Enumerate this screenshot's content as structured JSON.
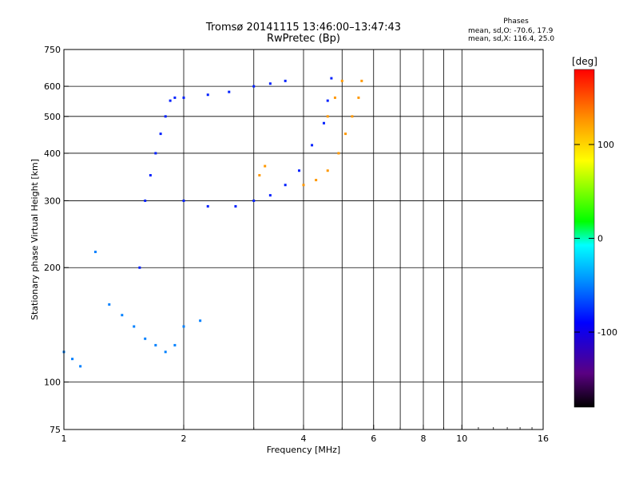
{
  "chart_data": {
    "type": "scatter",
    "title": "Tromsø 20141115 13:46:00–13:47:43",
    "subtitle": "RwPretec (Bp)",
    "legend": {
      "title": "Phases",
      "line1": "mean, sd,O: -70.6, 17.9",
      "line2": "mean, sd,X: 116.4, 25.0"
    },
    "xlabel": "Frequency [MHz]",
    "ylabel": "Stationary phase Virtual Height [km]",
    "xscale": "log",
    "yscale": "log",
    "xlim": [
      1,
      16
    ],
    "ylim": [
      75,
      750
    ],
    "xticks": [
      1,
      2,
      4,
      6,
      8,
      10,
      16
    ],
    "xtick_labels": [
      "1",
      "2",
      "4",
      "6",
      "8",
      "10",
      "16"
    ],
    "x_minor_gridlines": [
      3,
      5,
      7,
      9
    ],
    "yticks": [
      75,
      100,
      200,
      300,
      400,
      500,
      600,
      750
    ],
    "ytick_labels": [
      "75",
      "100",
      "200",
      "300",
      "400",
      "500",
      "600",
      "750"
    ],
    "grid": true,
    "colorbar": {
      "label": "[deg]",
      "range": [
        -180,
        180
      ],
      "ticks": [
        100,
        0,
        -100
      ],
      "tick_labels": [
        "100",
        "0",
        "-100"
      ],
      "colors": [
        "#000000",
        "#5a0082",
        "#0000ff",
        "#0096ff",
        "#00ffff",
        "#00ff00",
        "#ffff00",
        "#ff9600",
        "#ff0000"
      ]
    },
    "series": [
      {
        "trace": "O-mode F-layer trace (blue, ~-80 deg)",
        "color_value": -80,
        "points": [
          [
            1.55,
            200
          ],
          [
            1.6,
            300
          ],
          [
            1.65,
            350
          ],
          [
            1.7,
            400
          ],
          [
            1.75,
            450
          ],
          [
            1.8,
            500
          ],
          [
            1.85,
            550
          ],
          [
            1.9,
            560
          ],
          [
            2.0,
            560
          ],
          [
            2.3,
            570
          ],
          [
            2.6,
            580
          ],
          [
            3.0,
            600
          ],
          [
            3.3,
            610
          ],
          [
            3.6,
            620
          ],
          [
            2.0,
            300
          ],
          [
            2.3,
            290
          ],
          [
            2.7,
            290
          ],
          [
            3.0,
            300
          ],
          [
            3.3,
            310
          ],
          [
            3.6,
            330
          ],
          [
            3.9,
            360
          ],
          [
            4.2,
            420
          ],
          [
            4.5,
            480
          ],
          [
            4.6,
            550
          ],
          [
            4.7,
            630
          ]
        ]
      },
      {
        "trace": "X-mode F-layer trace (orange/red, ~120 deg)",
        "color_value": 125,
        "points": [
          [
            4.0,
            330
          ],
          [
            4.3,
            340
          ],
          [
            4.6,
            360
          ],
          [
            4.9,
            400
          ],
          [
            5.1,
            450
          ],
          [
            5.3,
            500
          ],
          [
            5.5,
            560
          ],
          [
            5.6,
            620
          ],
          [
            4.6,
            500
          ],
          [
            4.8,
            560
          ],
          [
            5.0,
            620
          ],
          [
            3.1,
            350
          ],
          [
            3.2,
            370
          ]
        ]
      },
      {
        "trace": "Low-frequency E/F1 echoes (cyan/blue, ~-50 deg)",
        "color_value": -50,
        "points": [
          [
            1.0,
            120
          ],
          [
            1.05,
            115
          ],
          [
            1.1,
            110
          ],
          [
            1.2,
            220
          ],
          [
            1.3,
            160
          ],
          [
            1.4,
            150
          ],
          [
            1.5,
            140
          ],
          [
            1.6,
            130
          ],
          [
            1.7,
            125
          ],
          [
            1.8,
            120
          ],
          [
            1.9,
            125
          ],
          [
            2.0,
            140
          ],
          [
            2.2,
            145
          ]
        ]
      }
    ]
  }
}
